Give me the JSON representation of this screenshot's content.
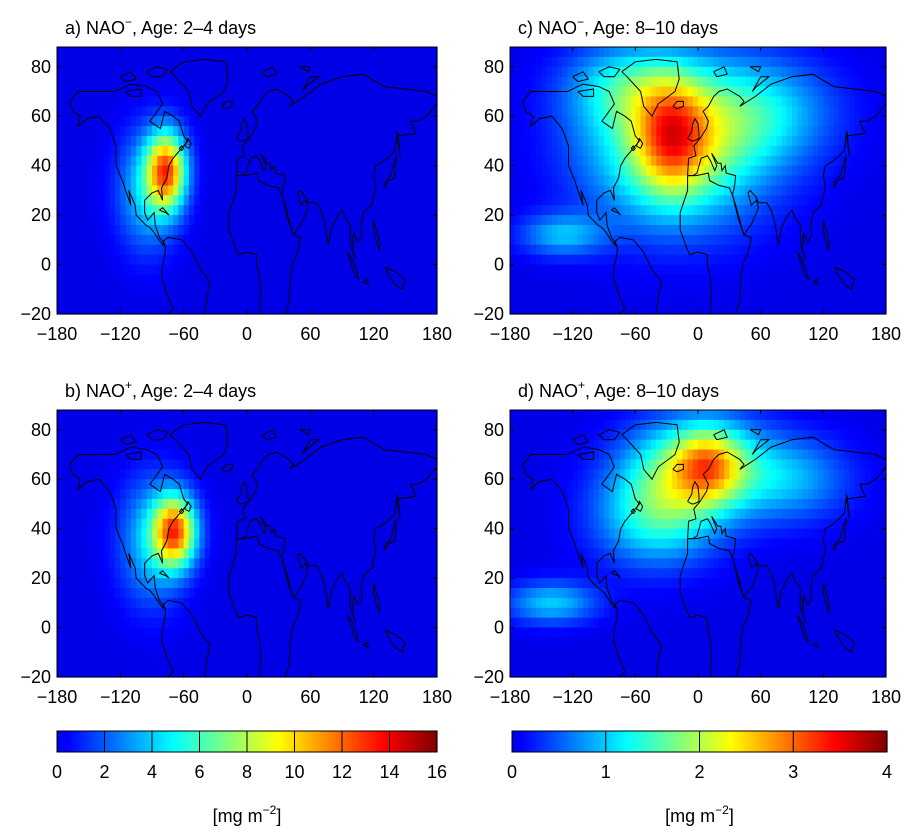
{
  "chart_data": {
    "type": "heatmap",
    "panels": [
      {
        "id": "a",
        "label": "a) NAO",
        "sign": "−",
        "rest": ", Age: 2–4 days",
        "xticks": [
          -180,
          -120,
          -60,
          0,
          60,
          120,
          180
        ],
        "yticks": [
          -20,
          0,
          20,
          40,
          60,
          80
        ],
        "xlim": [
          -180,
          180
        ],
        "ylim": [
          -20,
          88
        ],
        "colorbar": "left",
        "blobs": [
          {
            "lon": -95,
            "lat": 30,
            "slon": 20,
            "slat": 17,
            "amp": 4,
            "rot": 0
          },
          {
            "lon": -76,
            "lat": 38,
            "slon": 13,
            "slat": 11,
            "amp": 11,
            "rot": 0
          }
        ]
      },
      {
        "id": "b",
        "label": "b) NAO",
        "sign": "+",
        "rest": ", Age: 2–4 days",
        "xticks": [
          -180,
          -120,
          -60,
          0,
          60,
          120,
          180
        ],
        "yticks": [
          -20,
          0,
          20,
          40,
          60,
          80
        ],
        "xlim": [
          -180,
          180
        ],
        "ylim": [
          -20,
          88
        ],
        "colorbar": "left",
        "blobs": [
          {
            "lon": -90,
            "lat": 35,
            "slon": 22,
            "slat": 18,
            "amp": 4,
            "rot": 0
          },
          {
            "lon": -68,
            "lat": 39,
            "slon": 14,
            "slat": 10,
            "amp": 11,
            "rot": 0
          }
        ]
      },
      {
        "id": "c",
        "label": "c) NAO",
        "sign": "−",
        "rest": ", Age: 8–10 days",
        "xticks": [
          -180,
          -120,
          -60,
          0,
          60,
          120,
          180
        ],
        "yticks": [
          -20,
          0,
          20,
          40,
          60,
          80
        ],
        "xlim": [
          -180,
          180
        ],
        "ylim": [
          -20,
          88
        ],
        "colorbar": "right",
        "blobs": [
          {
            "lon": -20,
            "lat": 48,
            "slon": 60,
            "slat": 22,
            "amp": 1.9,
            "rot": 0
          },
          {
            "lon": -25,
            "lat": 52,
            "slon": 24,
            "slat": 16,
            "amp": 1.5,
            "rot": 0
          },
          {
            "lon": -70,
            "lat": 72,
            "slon": 40,
            "slat": 12,
            "amp": 0.9,
            "rot": 0
          },
          {
            "lon": -130,
            "lat": 12,
            "slon": 28,
            "slat": 6,
            "amp": 0.9,
            "rot": 0
          },
          {
            "lon": 60,
            "lat": 62,
            "slon": 50,
            "slat": 15,
            "amp": 0.9,
            "rot": 0
          }
        ]
      },
      {
        "id": "d",
        "label": "d) NAO",
        "sign": "+",
        "rest": ", Age: 8–10 days",
        "xticks": [
          -180,
          -120,
          -60,
          0,
          60,
          120,
          180
        ],
        "yticks": [
          -20,
          0,
          20,
          40,
          60,
          80
        ],
        "xlim": [
          -180,
          180
        ],
        "ylim": [
          -20,
          88
        ],
        "colorbar": "right",
        "blobs": [
          {
            "lon": 0,
            "lat": 65,
            "slon": 45,
            "slat": 14,
            "amp": 1.8,
            "rot": 0
          },
          {
            "lon": 10,
            "lat": 66,
            "slon": 22,
            "slat": 10,
            "amp": 1.2,
            "rot": 0
          },
          {
            "lon": -40,
            "lat": 45,
            "slon": 40,
            "slat": 14,
            "amp": 1.3,
            "rot": 0
          },
          {
            "lon": -140,
            "lat": 10,
            "slon": 30,
            "slat": 6,
            "amp": 1.0,
            "rot": 0
          },
          {
            "lon": 90,
            "lat": 60,
            "slon": 40,
            "slat": 12,
            "amp": 0.8,
            "rot": 0
          }
        ]
      }
    ],
    "colorbars": [
      {
        "id": "left",
        "min": 0,
        "max": 16,
        "ticks": [
          0,
          2,
          4,
          6,
          8,
          10,
          12,
          14,
          16
        ],
        "segments": 8,
        "units": "[mg m",
        "units_sup": "−2",
        "units_end": "]"
      },
      {
        "id": "right",
        "min": 0,
        "max": 4,
        "ticks": [
          0,
          1,
          2,
          3,
          4
        ],
        "segments": 4,
        "units": "[mg m",
        "units_sup": "−2",
        "units_end": "]"
      }
    ],
    "colormap": "jet"
  }
}
